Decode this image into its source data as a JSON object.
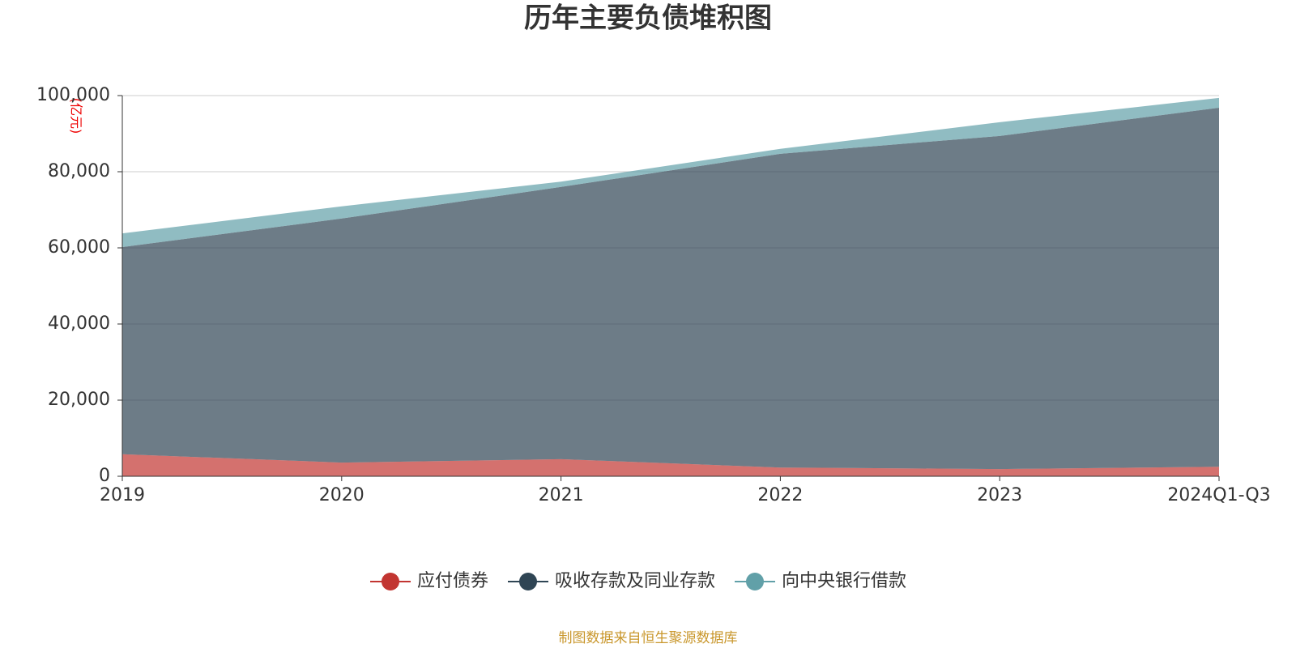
{
  "chart_data": {
    "type": "stacked_area",
    "title": "历年主要负债堆积图",
    "y_unit": "(亿元)",
    "categories": [
      "2019",
      "2020",
      "2021",
      "2022",
      "2023",
      "2024Q1-Q3"
    ],
    "series": [
      {
        "name": "应付债券",
        "color": "#c23531",
        "values": [
          5800,
          3600,
          4500,
          2300,
          1900,
          2500
        ]
      },
      {
        "name": "吸收存款及同业存款",
        "color": "#2f4554",
        "values": [
          54400,
          64100,
          71500,
          82400,
          87500,
          94300
        ]
      },
      {
        "name": "向中央银行借款",
        "color": "#61a0a8",
        "values": [
          3600,
          3200,
          1400,
          1300,
          3600,
          2600
        ]
      }
    ],
    "ylim": [
      0,
      100000
    ],
    "yticks": [
      0,
      {
        "value": 20000,
        "label": "20,000"
      },
      {
        "value": 40000,
        "label": "40,000"
      },
      {
        "value": 60000,
        "label": "60,000"
      },
      {
        "value": 80000,
        "label": "80,000"
      },
      {
        "value": 100000,
        "label": "100,000"
      }
    ],
    "grid": true,
    "legend": "bottom",
    "source": "制图数据来自恒生聚源数据库"
  }
}
